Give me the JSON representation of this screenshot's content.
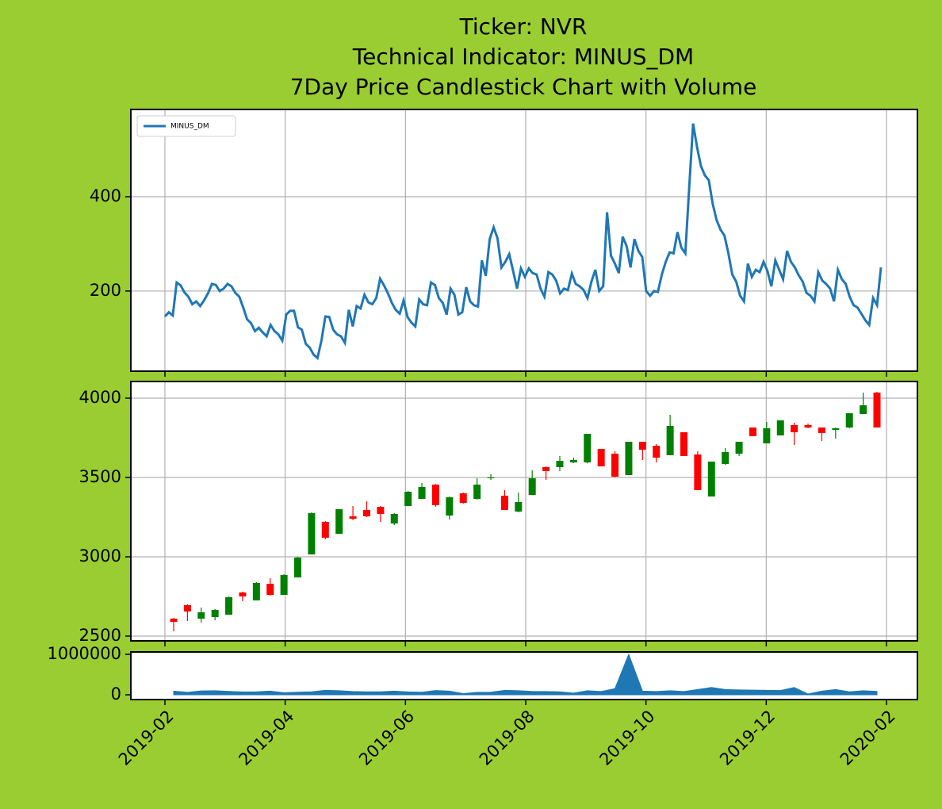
{
  "chart_data": [
    {
      "type": "line",
      "title": [
        "Ticker: NVR",
        "Technical Indicator: MINUS_DM",
        "7Day Price Candlestick Chart with Volume"
      ],
      "series": [
        {
          "name": "MINUS_DM",
          "color": "#1f77b4",
          "values": [
            146,
            155,
            148,
            218,
            212,
            197,
            188,
            172,
            178,
            168,
            180,
            195,
            215,
            213,
            200,
            205,
            215,
            210,
            196,
            188,
            165,
            140,
            132,
            115,
            122,
            112,
            104,
            128,
            115,
            108,
            95,
            150,
            158,
            158,
            123,
            118,
            88,
            80,
            65,
            58,
            95,
            146,
            145,
            118,
            108,
            104,
            90,
            160,
            125,
            168,
            163,
            192,
            176,
            172,
            185,
            226,
            212,
            195,
            175,
            160,
            152,
            180,
            145,
            133,
            125,
            182,
            172,
            170,
            218,
            213,
            185,
            175,
            150,
            205,
            192,
            150,
            155,
            208,
            178,
            170,
            167,
            265,
            232,
            310,
            335,
            312,
            250,
            262,
            278,
            242,
            205,
            248,
            230,
            248,
            238,
            235,
            205,
            188,
            240,
            235,
            222,
            195,
            205,
            202,
            237,
            215,
            210,
            202,
            185,
            220,
            245,
            200,
            210,
            367,
            275,
            258,
            238,
            315,
            295,
            250,
            310,
            285,
            272,
            200,
            190,
            200,
            198,
            235,
            262,
            282,
            280,
            325,
            292,
            280,
            420,
            555,
            505,
            465,
            445,
            435,
            385,
            350,
            330,
            318,
            280,
            235,
            220,
            190,
            178,
            258,
            230,
            245,
            240,
            262,
            242,
            210,
            265,
            245,
            225,
            285,
            262,
            250,
            233,
            220,
            196,
            190,
            178,
            240,
            222,
            215,
            205,
            178,
            245,
            225,
            215,
            188,
            170,
            165,
            152,
            138,
            128,
            185,
            170,
            250
          ]
        }
      ],
      "ylim": [
        30,
        585
      ],
      "yticks": [
        200,
        400
      ],
      "grid": true,
      "legend": "upper left"
    },
    {
      "type": "candlestick",
      "up_color": "#008000",
      "down_color": "#ff0000",
      "open": [
        2610,
        2695,
        2610,
        2620,
        2635,
        2775,
        2725,
        2830,
        2760,
        2870,
        3015,
        3220,
        3145,
        3255,
        3295,
        3315,
        3210,
        3320,
        3365,
        3455,
        3260,
        3400,
        3365,
        3495,
        3385,
        3285,
        3390,
        3565,
        3565,
        3595,
        3595,
        3680,
        3650,
        3515,
        3725,
        3700,
        3640,
        3785,
        3645,
        3380,
        3585,
        3650,
        3815,
        3715,
        3765,
        3830,
        3830,
        3815,
        3800,
        3815,
        3900,
        4035
      ],
      "high": [
        2615,
        2700,
        2680,
        2670,
        2750,
        2780,
        2840,
        2865,
        2890,
        3000,
        3280,
        3225,
        3300,
        3320,
        3350,
        3320,
        3275,
        3415,
        3465,
        3460,
        3380,
        3405,
        3495,
        3520,
        3420,
        3405,
        3545,
        3570,
        3635,
        3625,
        3775,
        3680,
        3665,
        3725,
        3725,
        3710,
        3895,
        3785,
        3665,
        3600,
        3685,
        3725,
        3815,
        3850,
        3860,
        3845,
        3840,
        3815,
        3815,
        3905,
        4035,
        4040
      ],
      "low": [
        2530,
        2595,
        2585,
        2600,
        2635,
        2720,
        2725,
        2755,
        2760,
        2870,
        3015,
        3110,
        3145,
        3230,
        3250,
        3220,
        3200,
        3320,
        3365,
        3315,
        3235,
        3335,
        3360,
        3485,
        3295,
        3280,
        3390,
        3485,
        3540,
        3590,
        3590,
        3570,
        3500,
        3515,
        3610,
        3595,
        3640,
        3635,
        3420,
        3380,
        3580,
        3635,
        3760,
        3715,
        3765,
        3705,
        3810,
        3730,
        3745,
        3810,
        3900,
        3815
      ],
      "close": [
        2590,
        2655,
        2650,
        2665,
        2745,
        2750,
        2835,
        2760,
        2885,
        2995,
        3275,
        3120,
        3300,
        3240,
        3255,
        3270,
        3270,
        3410,
        3440,
        3325,
        3375,
        3340,
        3455,
        3500,
        3295,
        3345,
        3495,
        3540,
        3605,
        3610,
        3775,
        3570,
        3505,
        3725,
        3675,
        3625,
        3825,
        3635,
        3420,
        3600,
        3660,
        3725,
        3760,
        3810,
        3860,
        3785,
        3815,
        3780,
        3810,
        3905,
        3955,
        3815
      ],
      "ylim": [
        2470,
        4105
      ],
      "yticks": [
        2500,
        3000,
        3500,
        4000
      ],
      "grid": true
    },
    {
      "type": "area",
      "color": "#1f77b4",
      "values": [
        90000,
        60000,
        95000,
        100000,
        85000,
        70000,
        75000,
        90000,
        50000,
        65000,
        75000,
        110000,
        100000,
        80000,
        75000,
        75000,
        90000,
        70000,
        65000,
        105000,
        90000,
        30000,
        60000,
        65000,
        110000,
        100000,
        85000,
        80000,
        75000,
        40000,
        100000,
        80000,
        150000,
        1000000,
        90000,
        80000,
        100000,
        80000,
        130000,
        180000,
        130000,
        120000,
        115000,
        110000,
        105000,
        180000,
        20000,
        90000,
        130000,
        75000,
        100000,
        85000
      ],
      "ylim": [
        -118000,
        1059000
      ],
      "yticks": [
        0,
        1000000
      ],
      "xticks": [
        "2019-02",
        "2019-04",
        "2019-06",
        "2019-08",
        "2019-10",
        "2019-12",
        "2020-02"
      ]
    }
  ]
}
